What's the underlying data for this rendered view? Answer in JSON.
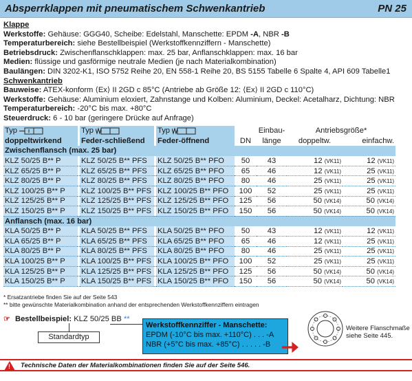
{
  "header": {
    "title": "Absperrklappen mit pneumatischem Schwenkantrieb",
    "pn": "PN 25"
  },
  "klappe": {
    "section": "Klappe",
    "werkstoffe_label": "Werkstoffe:",
    "werkstoffe_pre": " Gehäuse: GGG40, Scheibe: Edelstahl, Manschette: EPDM ",
    "werkstoffe_a": "-A",
    "werkstoffe_mid": ", NBR ",
    "werkstoffe_b": "-B",
    "temp_label": "Temperaturbereich:",
    "temp_value": " siehe Bestellbeispiel (Werkstoffkennziffern - Manschette)",
    "druck_label": "Betriebsdruck:",
    "druck_value": " Zwischenflanschklappen: max. 25 bar, Anflanschklappen: max. 16 bar",
    "medien_label": "Medien:",
    "medien_value": " flüssige und gasförmige neutrale Medien (je nach Materialkombination)",
    "baulaengen_label": "Baulängen:",
    "baulaengen_value": " DIN 3202-K1, ISO 5752 Reihe 20, EN 558-1 Reihe 20, BS 5155 Tabelle 6 Spalte 4, API 609 Tabelle1"
  },
  "antrieb": {
    "section": "Schwenkantrieb",
    "bauweise_label": "Bauweise:",
    "bauweise_value": " ATEX-konform ⟨Ex⟩ II 2GD c 85°C (Antriebe ab Größe 12: ⟨Ex⟩ II 2GD c 110°C)",
    "werkstoffe_label": "Werkstoffe:",
    "werkstoffe_value": " Gehäuse: Aluminium eloxiert, Zahnstange und Kolben: Aluminium, Deckel: Acetalharz, Dichtung: NBR",
    "temp_label": "Temperaturbereich:",
    "temp_value": " -20°C bis max. +80°C",
    "steuer_label": "Steuerdruck:",
    "steuer_value": " 6 - 10 bar (geringere Drücke auf Anfrage)"
  },
  "table": {
    "typ": "Typ",
    "h_doppel": "doppeltwirkend",
    "h_schliess": "Feder-schließend",
    "h_oeffnend": "Feder-öffnend",
    "h_dn": "DN",
    "h_einbau1": "Einbau-",
    "h_einbau2": "länge",
    "h_antrieb": "Antriebsgröße*",
    "h_doppeltw": "doppeltw.",
    "h_einfachw": "einfachw.",
    "sect1": "Zwischenflansch (max. 25 bar)",
    "sect2": "Anflansch (max. 16 bar)",
    "rows1": [
      {
        "p": "KLZ 50/25 B** P",
        "pfs": "KLZ 50/25 B** PFS",
        "pfo": "KLZ 50/25 B** PFO",
        "dn": "50",
        "len": "43",
        "d": "12",
        "dv": "(VK11)",
        "e": "12",
        "ev": "(VK11)"
      },
      {
        "p": "KLZ 65/25 B** P",
        "pfs": "KLZ 65/25 B** PFS",
        "pfo": "KLZ 65/25 B** PFO",
        "dn": "65",
        "len": "46",
        "d": "12",
        "dv": "(VK11)",
        "e": "25",
        "ev": "(VK11)"
      },
      {
        "p": "KLZ 80/25 B** P",
        "pfs": "KLZ 80/25 B** PFS",
        "pfo": "KLZ 80/25 B** PFO",
        "dn": "80",
        "len": "46",
        "d": "25",
        "dv": "(VK11)",
        "e": "25",
        "ev": "(VK11)"
      },
      {
        "p": "KLZ 100/25 B** P",
        "pfs": "KLZ 100/25 B** PFS",
        "pfo": "KLZ 100/25 B** PFO",
        "dn": "100",
        "len": "52",
        "d": "25",
        "dv": "(VK11)",
        "e": "25",
        "ev": "(VK11)"
      },
      {
        "p": "KLZ 125/25 B** P",
        "pfs": "KLZ 125/25 B** PFS",
        "pfo": "KLZ 125/25 B** PFO",
        "dn": "125",
        "len": "56",
        "d": "50",
        "dv": "(VK14)",
        "e": "50",
        "ev": "(VK14)"
      },
      {
        "p": "KLZ 150/25 B** P",
        "pfs": "KLZ 150/25 B** PFS",
        "pfo": "KLZ 150/25 B** PFO",
        "dn": "150",
        "len": "56",
        "d": "50",
        "dv": "(VK14)",
        "e": "50",
        "ev": "(VK14)"
      }
    ],
    "rows2": [
      {
        "p": "KLA 50/25 B** P",
        "pfs": "KLA 50/25 B** PFS",
        "pfo": "KLA 50/25 B** PFO",
        "dn": "50",
        "len": "43",
        "d": "12",
        "dv": "(VK11)",
        "e": "12",
        "ev": "(VK11)"
      },
      {
        "p": "KLA 65/25 B** P",
        "pfs": "KLA 65/25 B** PFS",
        "pfo": "KLA 65/25 B** PFO",
        "dn": "65",
        "len": "46",
        "d": "12",
        "dv": "(VK11)",
        "e": "25",
        "ev": "(VK11)"
      },
      {
        "p": "KLA 80/25 B** P",
        "pfs": "KLA 80/25 B** PFS",
        "pfo": "KLA 80/25 B** PFO",
        "dn": "80",
        "len": "46",
        "d": "25",
        "dv": "(VK11)",
        "e": "25",
        "ev": "(VK11)"
      },
      {
        "p": "KLA 100/25 B** P",
        "pfs": "KLA 100/25 B** PFS",
        "pfo": "KLA 100/25 B** PFO",
        "dn": "100",
        "len": "52",
        "d": "25",
        "dv": "(VK11)",
        "e": "25",
        "ev": "(VK11)"
      },
      {
        "p": "KLA 125/25 B** P",
        "pfs": "KLA 125/25 B** PFS",
        "pfo": "KLA 125/25 B** PFO",
        "dn": "125",
        "len": "56",
        "d": "50",
        "dv": "(VK14)",
        "e": "50",
        "ev": "(VK14)"
      },
      {
        "p": "KLA 150/25 B** P",
        "pfs": "KLA 150/25 B** PFS",
        "pfo": "KLA 150/25 B** PFO",
        "dn": "150",
        "len": "56",
        "d": "50",
        "dv": "(VK14)",
        "e": "50",
        "ev": "(VK14)"
      }
    ]
  },
  "notes": {
    "n1": "* Ersatzantriebe finden Sie auf der Seite 543",
    "n2": "** bitte gewünschte Materialkombination anhand der entsprechenden Werkstoffkennziffern eintragen"
  },
  "order": {
    "label": "Bestellbeispiel:",
    "code": "KLZ 50/25 BB",
    "code_suffix": " **",
    "standardtyp": "Standardtyp",
    "box_title": "Werkstoffkennziffer - Manschette:",
    "box_line1": "EPDM (-10°C bis max. +110°C) . . . -A",
    "box_line2": "NBR (+5°C bis max. +85°C) . . . . . -B"
  },
  "flange": {
    "text1": "Weitere Flanschmaße",
    "text2": "siehe Seite 445."
  },
  "footer": {
    "text": "Technische Daten der Materialkombinationen finden Sie auf der Seite 546."
  },
  "colors": {
    "header": "#9fcbe8",
    "table_blue": "#a8d1ec",
    "box_blue": "#1ea6df",
    "accent_red": "#d62020"
  }
}
